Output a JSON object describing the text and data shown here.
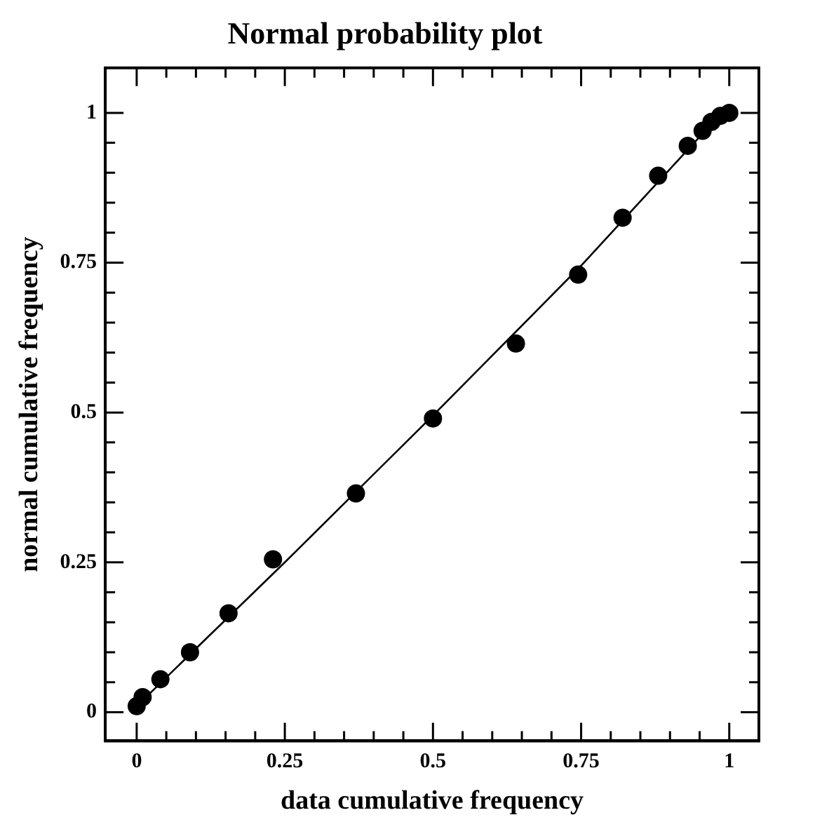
{
  "chart_data": {
    "type": "scatter",
    "title": "Normal probability plot",
    "xlabel": "data cumulative frequency",
    "ylabel": "normal cumulative frequency",
    "xlim": [
      -0.053,
      1.05
    ],
    "ylim": [
      -0.048,
      1.075
    ],
    "xticks": [
      0,
      {
        "value": 0.05,
        "label": null
      },
      {
        "value": 0.1,
        "label": null
      },
      {
        "value": 0.15,
        "label": null
      },
      {
        "value": 0.2,
        "label": null
      },
      0.25,
      {
        "value": 0.3,
        "label": null
      },
      {
        "value": 0.35,
        "label": null
      },
      {
        "value": 0.4,
        "label": null
      },
      {
        "value": 0.45,
        "label": null
      },
      0.5,
      {
        "value": 0.55,
        "label": null
      },
      {
        "value": 0.6,
        "label": null
      },
      {
        "value": 0.65,
        "label": null
      },
      {
        "value": 0.7,
        "label": null
      },
      0.75,
      {
        "value": 0.8,
        "label": null
      },
      {
        "value": 0.85,
        "label": null
      },
      {
        "value": 0.9,
        "label": null
      },
      {
        "value": 0.95,
        "label": null
      },
      1
    ],
    "yticks": [
      0,
      {
        "value": 0.05,
        "label": null
      },
      {
        "value": 0.1,
        "label": null
      },
      {
        "value": 0.15,
        "label": null
      },
      {
        "value": 0.2,
        "label": null
      },
      0.25,
      {
        "value": 0.3,
        "label": null
      },
      {
        "value": 0.35,
        "label": null
      },
      {
        "value": 0.4,
        "label": null
      },
      {
        "value": 0.45,
        "label": null
      },
      0.5,
      {
        "value": 0.55,
        "label": null
      },
      {
        "value": 0.6,
        "label": null
      },
      {
        "value": 0.65,
        "label": null
      },
      {
        "value": 0.7,
        "label": null
      },
      0.75,
      {
        "value": 0.8,
        "label": null
      },
      {
        "value": 0.85,
        "label": null
      },
      {
        "value": 0.9,
        "label": null
      },
      {
        "value": 0.95,
        "label": null
      },
      1
    ],
    "grid": false,
    "legend": false,
    "series": [
      {
        "color": "#000000",
        "marker": "circle",
        "x": [
          0.0,
          0.01,
          0.04,
          0.09,
          0.155,
          0.23,
          0.37,
          0.5,
          0.64,
          0.745,
          0.82,
          0.88,
          0.93,
          0.955,
          0.97,
          0.985,
          1.0
        ],
        "values": [
          0.01,
          0.025,
          0.055,
          0.1,
          0.165,
          0.255,
          0.365,
          0.49,
          0.615,
          0.73,
          0.825,
          0.895,
          0.945,
          0.97,
          0.985,
          0.995,
          1.0
        ]
      },
      {
        "type": "line",
        "marker": "none",
        "color": "#000000",
        "x": [
          0.0,
          0.25,
          0.5,
          0.75,
          0.95,
          1.0
        ],
        "values": [
          0.01,
          0.25,
          0.495,
          0.745,
          0.96,
          1.0
        ]
      }
    ]
  }
}
